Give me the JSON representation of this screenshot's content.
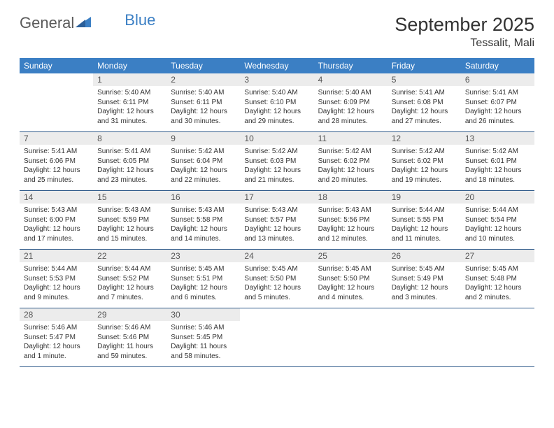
{
  "brand": {
    "part1": "General",
    "part2": "Blue"
  },
  "title": "September 2025",
  "location": "Tessalit, Mali",
  "colors": {
    "header_bg": "#3b7fc4",
    "header_text": "#ffffff",
    "daynum_bg": "#ececec",
    "row_divider": "#2f5a8a",
    "body_text": "#333333"
  },
  "weekdays": [
    "Sunday",
    "Monday",
    "Tuesday",
    "Wednesday",
    "Thursday",
    "Friday",
    "Saturday"
  ],
  "weeks": [
    [
      {
        "n": "",
        "sr": "",
        "ss": "",
        "dl": ""
      },
      {
        "n": "1",
        "sr": "Sunrise: 5:40 AM",
        "ss": "Sunset: 6:11 PM",
        "dl": "Daylight: 12 hours and 31 minutes."
      },
      {
        "n": "2",
        "sr": "Sunrise: 5:40 AM",
        "ss": "Sunset: 6:11 PM",
        "dl": "Daylight: 12 hours and 30 minutes."
      },
      {
        "n": "3",
        "sr": "Sunrise: 5:40 AM",
        "ss": "Sunset: 6:10 PM",
        "dl": "Daylight: 12 hours and 29 minutes."
      },
      {
        "n": "4",
        "sr": "Sunrise: 5:40 AM",
        "ss": "Sunset: 6:09 PM",
        "dl": "Daylight: 12 hours and 28 minutes."
      },
      {
        "n": "5",
        "sr": "Sunrise: 5:41 AM",
        "ss": "Sunset: 6:08 PM",
        "dl": "Daylight: 12 hours and 27 minutes."
      },
      {
        "n": "6",
        "sr": "Sunrise: 5:41 AM",
        "ss": "Sunset: 6:07 PM",
        "dl": "Daylight: 12 hours and 26 minutes."
      }
    ],
    [
      {
        "n": "7",
        "sr": "Sunrise: 5:41 AM",
        "ss": "Sunset: 6:06 PM",
        "dl": "Daylight: 12 hours and 25 minutes."
      },
      {
        "n": "8",
        "sr": "Sunrise: 5:41 AM",
        "ss": "Sunset: 6:05 PM",
        "dl": "Daylight: 12 hours and 23 minutes."
      },
      {
        "n": "9",
        "sr": "Sunrise: 5:42 AM",
        "ss": "Sunset: 6:04 PM",
        "dl": "Daylight: 12 hours and 22 minutes."
      },
      {
        "n": "10",
        "sr": "Sunrise: 5:42 AM",
        "ss": "Sunset: 6:03 PM",
        "dl": "Daylight: 12 hours and 21 minutes."
      },
      {
        "n": "11",
        "sr": "Sunrise: 5:42 AM",
        "ss": "Sunset: 6:02 PM",
        "dl": "Daylight: 12 hours and 20 minutes."
      },
      {
        "n": "12",
        "sr": "Sunrise: 5:42 AM",
        "ss": "Sunset: 6:02 PM",
        "dl": "Daylight: 12 hours and 19 minutes."
      },
      {
        "n": "13",
        "sr": "Sunrise: 5:42 AM",
        "ss": "Sunset: 6:01 PM",
        "dl": "Daylight: 12 hours and 18 minutes."
      }
    ],
    [
      {
        "n": "14",
        "sr": "Sunrise: 5:43 AM",
        "ss": "Sunset: 6:00 PM",
        "dl": "Daylight: 12 hours and 17 minutes."
      },
      {
        "n": "15",
        "sr": "Sunrise: 5:43 AM",
        "ss": "Sunset: 5:59 PM",
        "dl": "Daylight: 12 hours and 15 minutes."
      },
      {
        "n": "16",
        "sr": "Sunrise: 5:43 AM",
        "ss": "Sunset: 5:58 PM",
        "dl": "Daylight: 12 hours and 14 minutes."
      },
      {
        "n": "17",
        "sr": "Sunrise: 5:43 AM",
        "ss": "Sunset: 5:57 PM",
        "dl": "Daylight: 12 hours and 13 minutes."
      },
      {
        "n": "18",
        "sr": "Sunrise: 5:43 AM",
        "ss": "Sunset: 5:56 PM",
        "dl": "Daylight: 12 hours and 12 minutes."
      },
      {
        "n": "19",
        "sr": "Sunrise: 5:44 AM",
        "ss": "Sunset: 5:55 PM",
        "dl": "Daylight: 12 hours and 11 minutes."
      },
      {
        "n": "20",
        "sr": "Sunrise: 5:44 AM",
        "ss": "Sunset: 5:54 PM",
        "dl": "Daylight: 12 hours and 10 minutes."
      }
    ],
    [
      {
        "n": "21",
        "sr": "Sunrise: 5:44 AM",
        "ss": "Sunset: 5:53 PM",
        "dl": "Daylight: 12 hours and 9 minutes."
      },
      {
        "n": "22",
        "sr": "Sunrise: 5:44 AM",
        "ss": "Sunset: 5:52 PM",
        "dl": "Daylight: 12 hours and 7 minutes."
      },
      {
        "n": "23",
        "sr": "Sunrise: 5:45 AM",
        "ss": "Sunset: 5:51 PM",
        "dl": "Daylight: 12 hours and 6 minutes."
      },
      {
        "n": "24",
        "sr": "Sunrise: 5:45 AM",
        "ss": "Sunset: 5:50 PM",
        "dl": "Daylight: 12 hours and 5 minutes."
      },
      {
        "n": "25",
        "sr": "Sunrise: 5:45 AM",
        "ss": "Sunset: 5:50 PM",
        "dl": "Daylight: 12 hours and 4 minutes."
      },
      {
        "n": "26",
        "sr": "Sunrise: 5:45 AM",
        "ss": "Sunset: 5:49 PM",
        "dl": "Daylight: 12 hours and 3 minutes."
      },
      {
        "n": "27",
        "sr": "Sunrise: 5:45 AM",
        "ss": "Sunset: 5:48 PM",
        "dl": "Daylight: 12 hours and 2 minutes."
      }
    ],
    [
      {
        "n": "28",
        "sr": "Sunrise: 5:46 AM",
        "ss": "Sunset: 5:47 PM",
        "dl": "Daylight: 12 hours and 1 minute."
      },
      {
        "n": "29",
        "sr": "Sunrise: 5:46 AM",
        "ss": "Sunset: 5:46 PM",
        "dl": "Daylight: 11 hours and 59 minutes."
      },
      {
        "n": "30",
        "sr": "Sunrise: 5:46 AM",
        "ss": "Sunset: 5:45 PM",
        "dl": "Daylight: 11 hours and 58 minutes."
      },
      {
        "n": "",
        "sr": "",
        "ss": "",
        "dl": ""
      },
      {
        "n": "",
        "sr": "",
        "ss": "",
        "dl": ""
      },
      {
        "n": "",
        "sr": "",
        "ss": "",
        "dl": ""
      },
      {
        "n": "",
        "sr": "",
        "ss": "",
        "dl": ""
      }
    ]
  ]
}
